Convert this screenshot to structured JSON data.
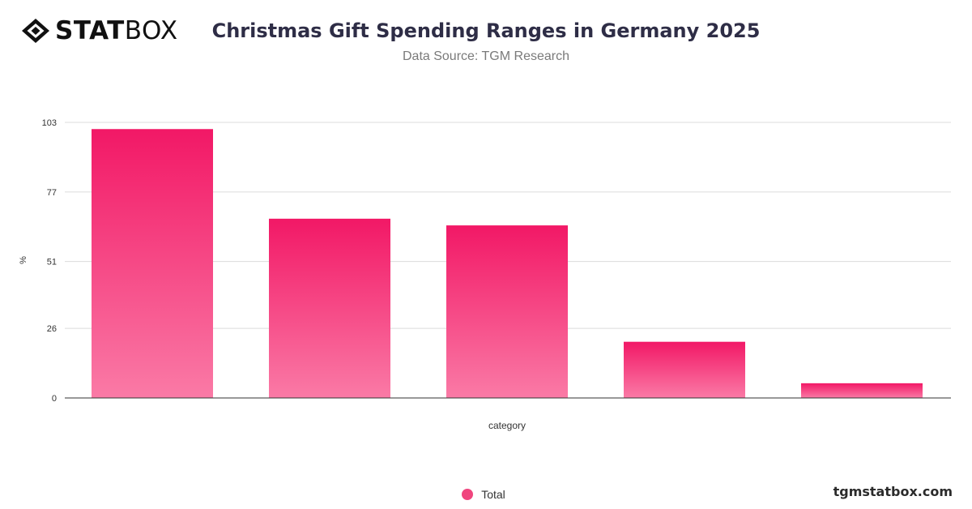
{
  "header": {
    "logo_text_bold": "STAT",
    "logo_text_light": "BOX",
    "title": "Christmas Gift Spending Ranges in Germany 2025",
    "subtitle": "Data Source: TGM Research"
  },
  "legend": {
    "label": "Total",
    "color": "#f0457e"
  },
  "footer": {
    "brand": "tgmstatbox.com"
  },
  "colors": {
    "bar_top": "#f21866",
    "bar_bottom": "#fa7aa6",
    "grid": "#dcdcdc",
    "axis": "#333333"
  },
  "chart_data": {
    "type": "bar",
    "title": "Christmas Gift Spending Ranges in Germany 2025",
    "xlabel": "category",
    "ylabel": "%",
    "categories": [
      "",
      "",
      "",
      "",
      ""
    ],
    "series": [
      {
        "name": "Total",
        "values": [
          100.5,
          67,
          64.5,
          21,
          5.5
        ]
      }
    ],
    "yticks": [
      0,
      26,
      51,
      77,
      103
    ],
    "ylim": [
      0,
      103
    ],
    "grid": true,
    "legend_position": "bottom"
  }
}
